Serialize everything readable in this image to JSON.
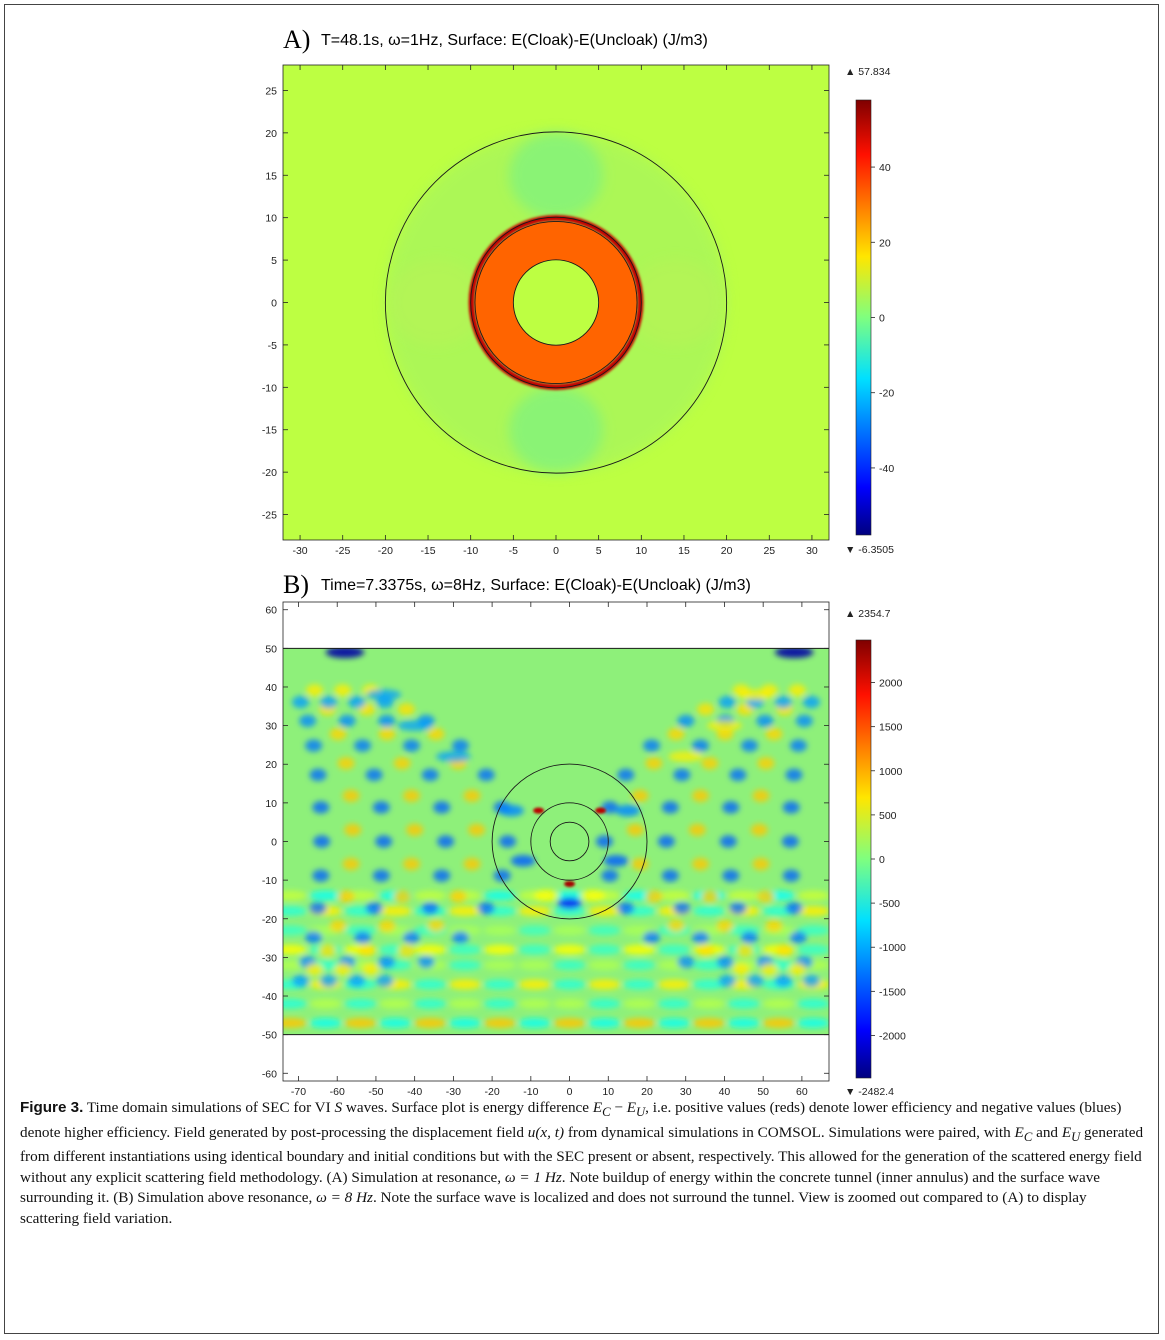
{
  "chart_data": [
    {
      "type": "heatmap",
      "panel_label": "A)",
      "title": "T=48.1s, ω=1Hz, Surface: E(Cloak)-E(Uncloak) (J/m3)",
      "xlim": [
        -32,
        32
      ],
      "ylim": [
        -28,
        28
      ],
      "x_ticks": [
        -30,
        -25,
        -20,
        -15,
        -10,
        -5,
        0,
        5,
        10,
        15,
        20,
        25,
        30
      ],
      "y_ticks": [
        25,
        20,
        15,
        10,
        5,
        0,
        -5,
        -10,
        -15,
        -20,
        -25
      ],
      "colorbar_max_label": "▲ 57.834",
      "colorbar_min_label": "▼ -6.3505",
      "colorbar_ticks": [
        40,
        20,
        0,
        -20,
        -40
      ],
      "colorbar_range": [
        -57.834,
        57.834
      ],
      "boundary_circle_radii": [
        5,
        9.5,
        10,
        20
      ],
      "background_value": 7,
      "inner_annulus_value": 32,
      "surface_wave_ring_value": 50
    },
    {
      "type": "heatmap",
      "panel_label": "B)",
      "title": "Time=7.3375s, ω=8Hz, Surface: E(Cloak)-E(Uncloak) (J/m3)",
      "xlim": [
        -74,
        67
      ],
      "ylim": [
        -62,
        62
      ],
      "x_ticks": [
        -70,
        -60,
        -50,
        -40,
        -30,
        -20,
        -10,
        0,
        10,
        20,
        30,
        40,
        50,
        60
      ],
      "y_ticks": [
        60,
        50,
        40,
        30,
        20,
        10,
        0,
        -10,
        -20,
        -30,
        -40,
        -50,
        -60
      ],
      "colorbar_max_label": "▲ 2354.7",
      "colorbar_min_label": "▼ -2482.4",
      "colorbar_ticks": [
        2000,
        1500,
        1000,
        500,
        0,
        -500,
        -1000,
        -1500,
        -2000
      ],
      "colorbar_range": [
        -2482.4,
        2482.4
      ],
      "boundary_circle_radii": [
        5,
        10,
        20
      ],
      "domain_y_range": [
        -50,
        50
      ]
    }
  ],
  "caption": {
    "label": "Figure 3.",
    "p1": " Time domain simulations of SEC for VI ",
    "s_wave": "S",
    "p2": " waves. Surface plot is energy difference ",
    "ec": "E",
    "ec_sub": "C",
    "minus": " − ",
    "eu": "E",
    "eu_sub": "U",
    "p3": ", i.e. positive values (reds) denote lower efficiency and negative values (blues) denote higher efficiency. Field generated by post-processing the displacement field ",
    "u_expr": "u(x, t)",
    "p4": " from dynamical simulations in COMSOL. Simulations were paired, with ",
    "ec2": "E",
    "ec2_sub": "C",
    "and": " and ",
    "eu2": "E",
    "eu2_sub": "U",
    "p5": " generated from different instantiations using identical boundary and initial conditions but with the SEC present or absent, respectively. This allowed for the generation of the scattered energy field without any explicit scattering field methodology. (A) Simulation at resonance, ",
    "omega1": "ω = 1 Hz",
    "p6": ". Note buildup of energy within the concrete tunnel (inner annulus) and the surface wave surrounding it. (B) Simulation above resonance, ",
    "omega8": "ω = 8 Hz",
    "p7": ". Note the surface wave is localized and does not surround the tunnel. View is zoomed out compared to (A) to display scattering field variation."
  }
}
